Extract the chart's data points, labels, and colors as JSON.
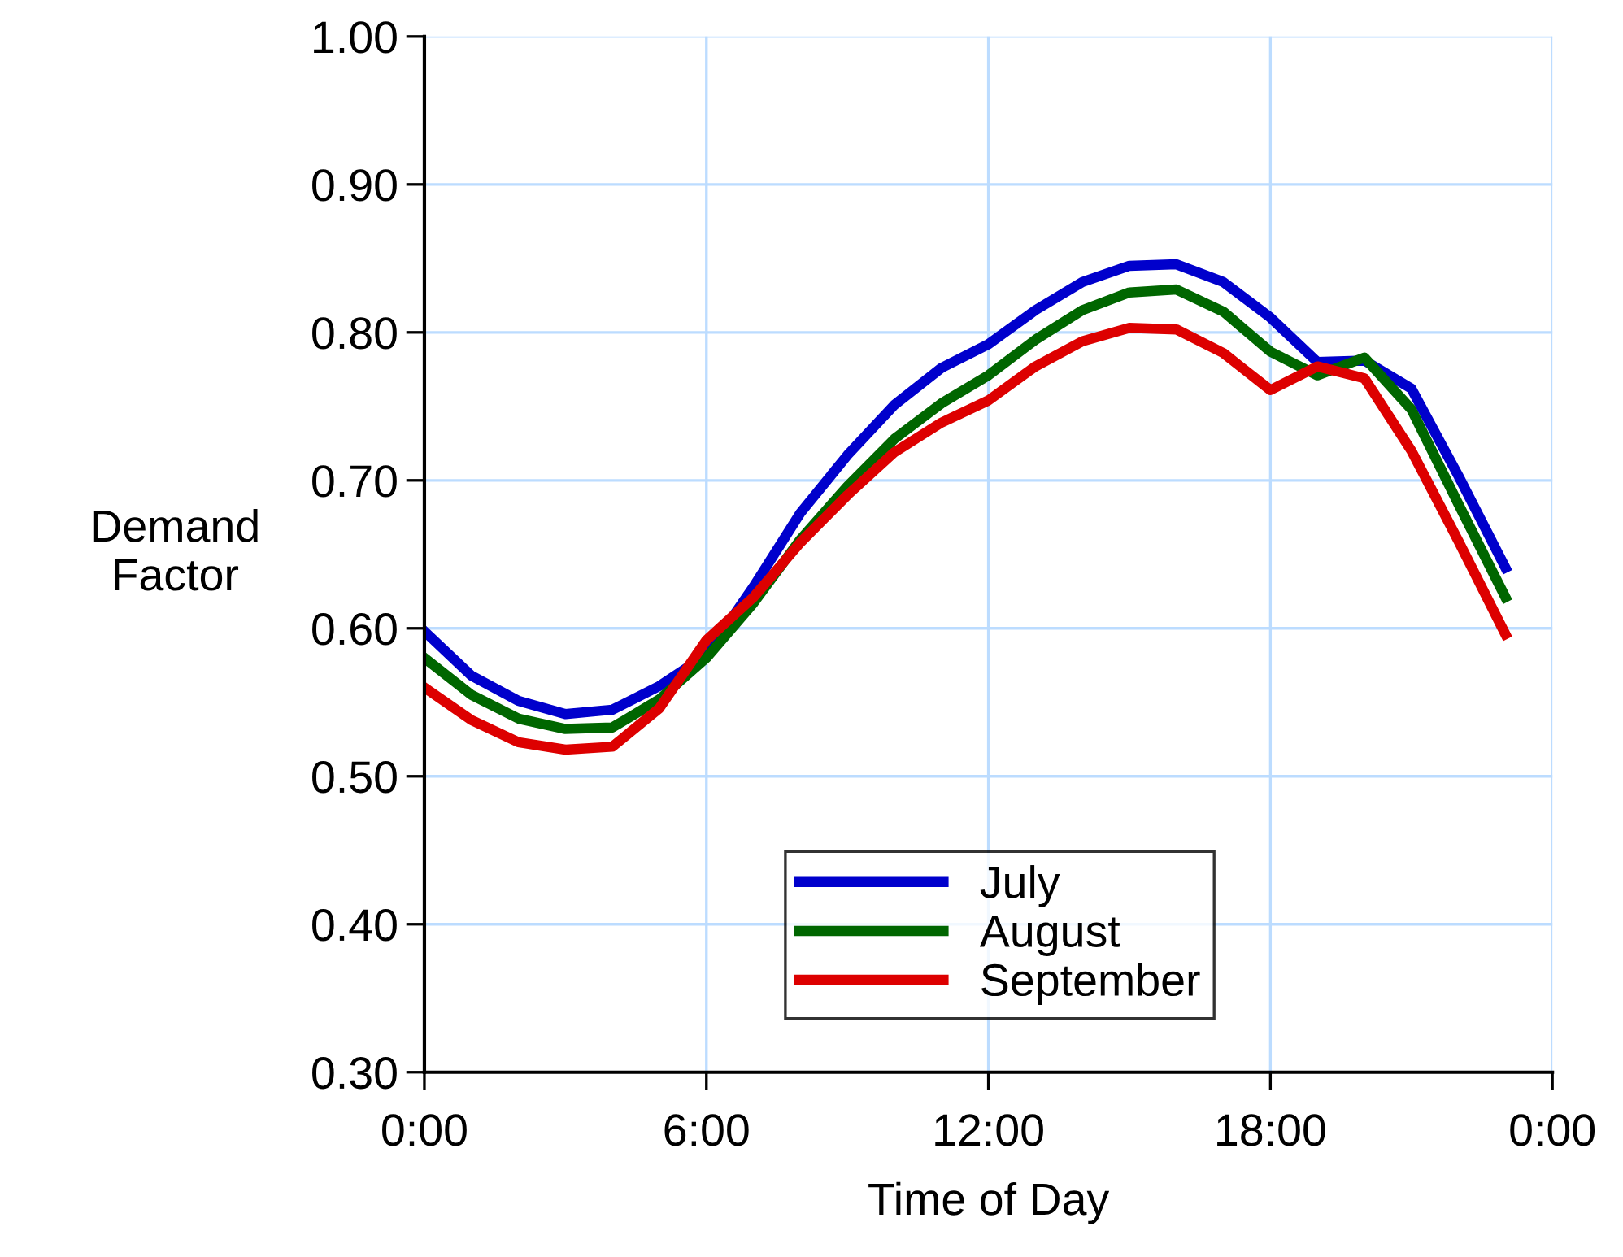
{
  "chart_data": {
    "type": "line",
    "xlabel": "Time of Day",
    "ylabel": "Demand\nFactor",
    "x": [
      0,
      1,
      2,
      3,
      4,
      5,
      6,
      7,
      8,
      9,
      10,
      11,
      12,
      13,
      14,
      15,
      16,
      17,
      18,
      19,
      20,
      21,
      22,
      23
    ],
    "series": [
      {
        "name": "July",
        "color": "#0000cc",
        "values": [
          0.598,
          0.568,
          0.551,
          0.542,
          0.545,
          0.561,
          0.582,
          0.628,
          0.678,
          0.717,
          0.751,
          0.776,
          0.792,
          0.815,
          0.834,
          0.845,
          0.846,
          0.834,
          0.81,
          0.78,
          0.781,
          0.762,
          0.703,
          0.641
        ]
      },
      {
        "name": "August",
        "color": "#006600",
        "values": [
          0.58,
          0.555,
          0.539,
          0.532,
          0.533,
          0.552,
          0.58,
          0.617,
          0.66,
          0.696,
          0.728,
          0.752,
          0.771,
          0.795,
          0.815,
          0.827,
          0.829,
          0.814,
          0.787,
          0.771,
          0.783,
          0.748,
          0.684,
          0.621
        ]
      },
      {
        "name": "September",
        "color": "#dd0000",
        "values": [
          0.56,
          0.538,
          0.523,
          0.518,
          0.52,
          0.546,
          0.592,
          0.621,
          0.658,
          0.69,
          0.719,
          0.739,
          0.754,
          0.777,
          0.794,
          0.803,
          0.802,
          0.786,
          0.761,
          0.777,
          0.769,
          0.72,
          0.659,
          0.596
        ]
      }
    ],
    "xlim": [
      0,
      24
    ],
    "ylim": [
      0.3,
      1.0
    ],
    "xticks": [
      {
        "value": 0,
        "label": "0:00"
      },
      {
        "value": 6,
        "label": "6:00"
      },
      {
        "value": 12,
        "label": "12:00"
      },
      {
        "value": 18,
        "label": "18:00"
      },
      {
        "value": 24,
        "label": "0:00"
      }
    ],
    "yticks": [
      {
        "value": 0.3,
        "label": "0.30"
      },
      {
        "value": 0.4,
        "label": "0.40"
      },
      {
        "value": 0.5,
        "label": "0.50"
      },
      {
        "value": 0.6,
        "label": "0.60"
      },
      {
        "value": 0.7,
        "label": "0.70"
      },
      {
        "value": 0.8,
        "label": "0.80"
      },
      {
        "value": 0.9,
        "label": "0.90"
      },
      {
        "value": 1.0,
        "label": "1.00"
      }
    ],
    "grid": true,
    "legend": "bottom",
    "marker": "none",
    "line_style": "solid"
  }
}
